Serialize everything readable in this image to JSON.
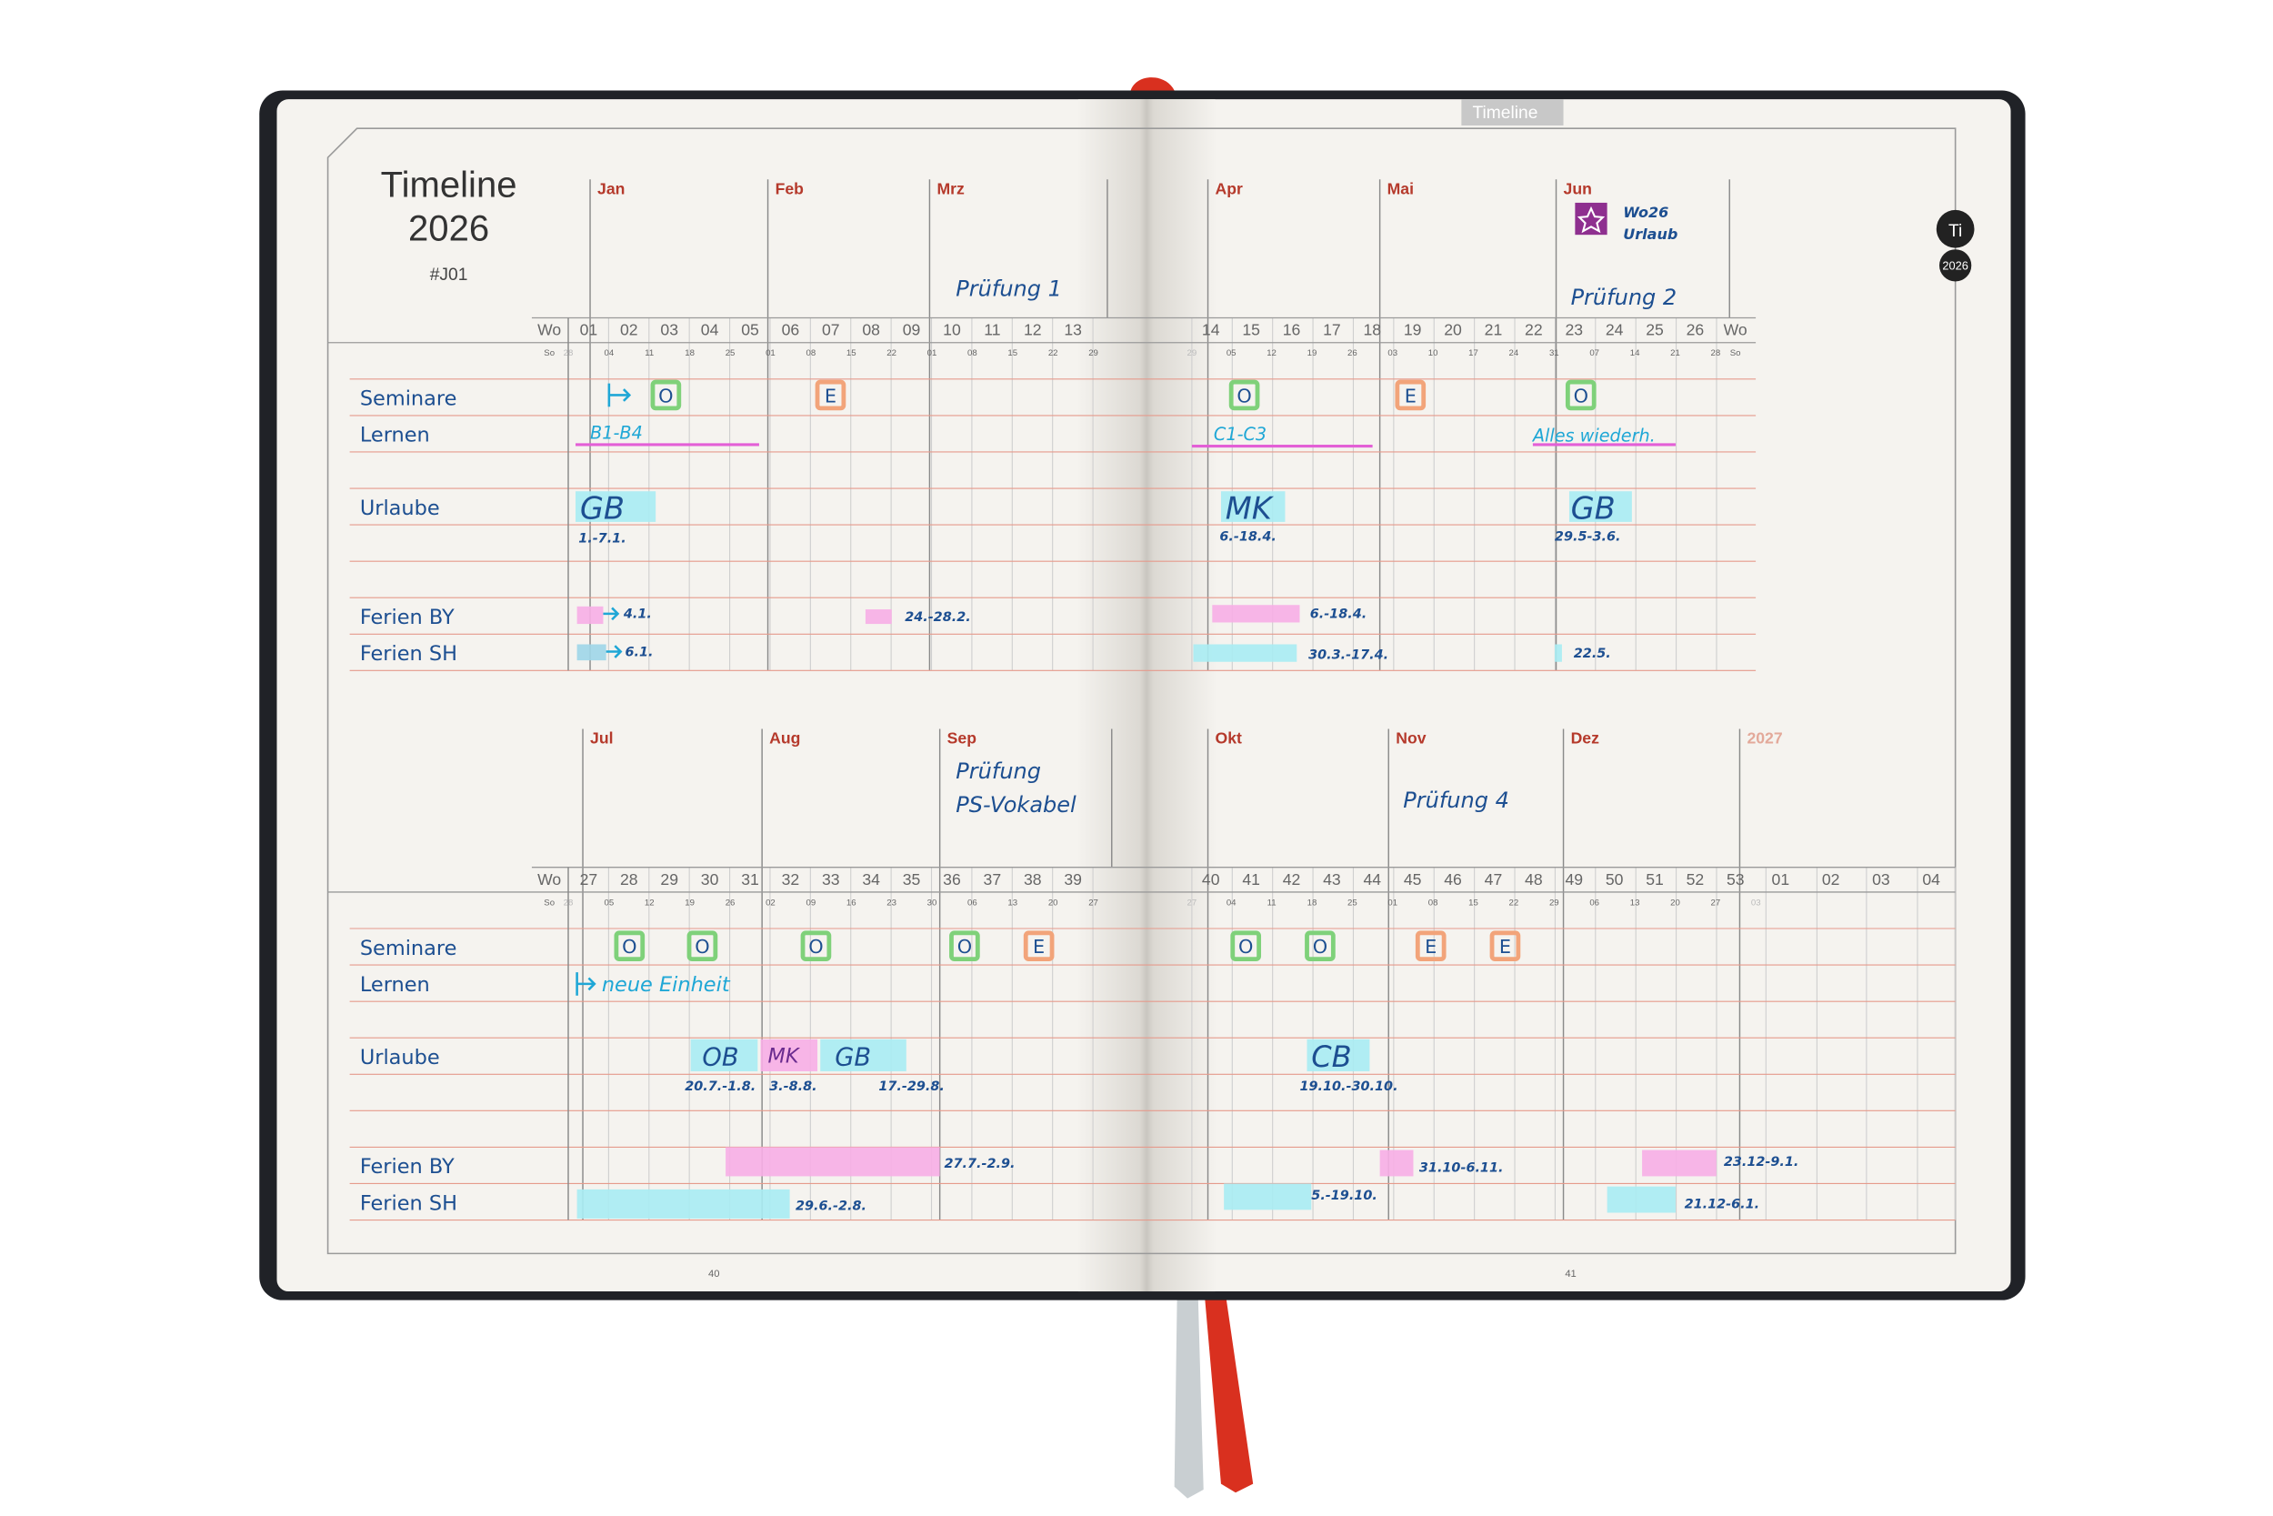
{
  "tab": "Timeline",
  "side_tabs": [
    "Ti",
    "2026"
  ],
  "header": {
    "title": "Timeline",
    "year": "2026",
    "code": "#J01"
  },
  "page_numbers": [
    "40",
    "41"
  ],
  "halves": [
    {
      "months": [
        "Jan",
        "Feb",
        "Mrz",
        "Apr",
        "Mai",
        "Jun"
      ],
      "week_label": "Wo",
      "day_label": "So",
      "weeks": [
        "01",
        "02",
        "03",
        "04",
        "05",
        "06",
        "07",
        "08",
        "09",
        "10",
        "11",
        "12",
        "13",
        "14",
        "15",
        "16",
        "17",
        "18",
        "19",
        "20",
        "21",
        "22",
        "23",
        "24",
        "25",
        "26"
      ],
      "days": [
        "28",
        "04",
        "11",
        "18",
        "25",
        "01",
        "08",
        "15",
        "22",
        "01",
        "08",
        "15",
        "22",
        "29",
        "29",
        "05",
        "12",
        "19",
        "26",
        "03",
        "10",
        "17",
        "24",
        "31",
        "07",
        "14",
        "21",
        "28"
      ],
      "rows": [
        "Seminare",
        "Lernen",
        "Urlaube",
        "Ferien BY",
        "Ferien SH"
      ],
      "notes": {
        "exams": [
          "Prüfung 1",
          "Prüfung 2"
        ],
        "seminars": [
          "O",
          "E",
          "O",
          "E",
          "O"
        ],
        "learning": [
          "B1-B4",
          "C1-C3",
          "Alles wiederh."
        ],
        "vacations": [
          "GB",
          "MK",
          "GB"
        ],
        "vacation_dates": [
          "1.-7.1.",
          "6.-18.4.",
          "29.5-3.6."
        ],
        "holidays_by": [
          "4.1.",
          "24.-28.2.",
          "6.-18.4."
        ],
        "holidays_sh": [
          "6.1.",
          "30.3.-17.4.",
          "22.5."
        ],
        "reminder": [
          "Wo26",
          "Urlaub"
        ]
      }
    },
    {
      "months": [
        "Jul",
        "Aug",
        "Sep",
        "Okt",
        "Nov",
        "Dez",
        "2027"
      ],
      "week_label": "Wo",
      "day_label": "So",
      "weeks": [
        "27",
        "28",
        "29",
        "30",
        "31",
        "32",
        "33",
        "34",
        "35",
        "36",
        "37",
        "38",
        "39",
        "40",
        "41",
        "42",
        "43",
        "44",
        "45",
        "46",
        "47",
        "48",
        "49",
        "50",
        "51",
        "52",
        "53",
        "01",
        "02",
        "03",
        "04"
      ],
      "days": [
        "28",
        "05",
        "12",
        "19",
        "26",
        "02",
        "09",
        "16",
        "23",
        "30",
        "06",
        "13",
        "20",
        "27",
        "27",
        "04",
        "11",
        "18",
        "25",
        "01",
        "08",
        "15",
        "22",
        "29",
        "06",
        "13",
        "20",
        "27",
        "03"
      ],
      "rows": [
        "Seminare",
        "Lernen",
        "Urlaube",
        "Ferien BY",
        "Ferien SH"
      ],
      "notes": {
        "exams": [
          "Prüfung",
          "PS-Vokabel",
          "Prüfung 4"
        ],
        "seminars": [
          "O",
          "O",
          "O",
          "O",
          "E",
          "O",
          "O",
          "E",
          "E"
        ],
        "learning": [
          "neue Einheit"
        ],
        "vacations": [
          "OB",
          "MK",
          "GB",
          "CB"
        ],
        "vacation_dates": [
          "20.7.-1.8.",
          "3.-8.8.",
          "17.-29.8.",
          "19.10.-30.10."
        ],
        "holidays_by": [
          "27.7.-2.9.",
          "31.10-6.11.",
          "23.12-9.1."
        ],
        "holidays_sh": [
          "29.6.-2.8.",
          "5.-19.10.",
          "21.12-6.1."
        ]
      }
    }
  ]
}
